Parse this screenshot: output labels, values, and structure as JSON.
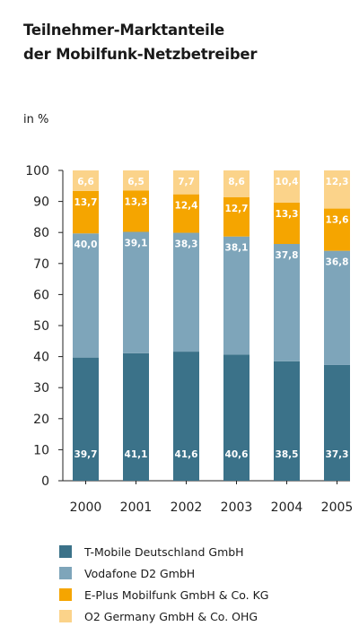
{
  "title_line1": "Teilnehmer-Marktanteile",
  "title_line2": "der Mobilfunk-Netzbetreiber",
  "unit_label": "in %",
  "chart_data": {
    "type": "bar",
    "stacked": true,
    "categories": [
      "2000",
      "2001",
      "2002",
      "2003",
      "2004",
      "2005"
    ],
    "series": [
      {
        "name": "T-Mobile Deutschland GmbH",
        "color": "#3b7289",
        "label_color": "#ffffff",
        "values": [
          39.7,
          41.1,
          41.6,
          40.6,
          38.5,
          37.3
        ],
        "labels": [
          "39,7",
          "41,1",
          "41,6",
          "40,6",
          "38,5",
          "37,3"
        ]
      },
      {
        "name": "Vodafone D2 GmbH",
        "color": "#7ea5ba",
        "label_color": "#ffffff",
        "values": [
          40.0,
          39.1,
          38.3,
          38.1,
          37.8,
          36.8
        ],
        "labels": [
          "40,0",
          "39,1",
          "38,3",
          "38,1",
          "37,8",
          "36,8"
        ]
      },
      {
        "name": "E-Plus Mobilfunk GmbH & Co. KG",
        "color": "#f5a500",
        "label_color": "#ffffff",
        "values": [
          13.7,
          13.3,
          12.4,
          12.7,
          13.3,
          13.6
        ],
        "labels": [
          "13,7",
          "13,3",
          "12,4",
          "12,7",
          "13,3",
          "13,6"
        ]
      },
      {
        "name": "O2 Germany GmbH & Co. OHG",
        "color": "#fbd38a",
        "label_color": "#ffffff",
        "values": [
          6.6,
          6.5,
          7.7,
          8.6,
          10.4,
          12.3
        ],
        "labels": [
          "6,6",
          "6,5",
          "7,7",
          "8,6",
          "10,4",
          "12,3"
        ]
      }
    ],
    "ylim": [
      0,
      100
    ],
    "yticks": [
      "0",
      "10",
      "20",
      "30",
      "40",
      "50",
      "60",
      "70",
      "80",
      "90",
      "100"
    ],
    "grid": false,
    "legend_position": "bottom"
  }
}
